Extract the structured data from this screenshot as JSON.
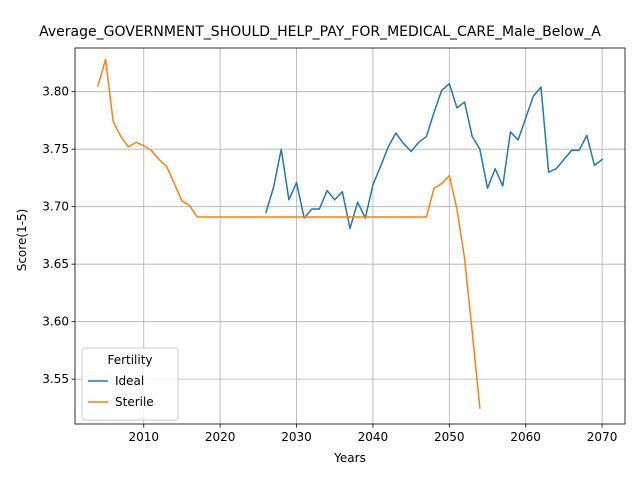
{
  "chart_data": {
    "type": "line",
    "title": "Average_GOVERNMENT_SHOULD_HELP_PAY_FOR_MEDICAL_CARE_Male_Below_A",
    "xlabel": "Years",
    "ylabel": "Score(1-5)",
    "xlim": [
      2001,
      2073
    ],
    "ylim": [
      3.511,
      3.838
    ],
    "xticks": [
      2010,
      2020,
      2030,
      2040,
      2050,
      2060,
      2070
    ],
    "yticks": [
      3.55,
      3.6,
      3.65,
      3.7,
      3.75,
      3.8
    ],
    "grid": true,
    "legend": {
      "title": "Fertility",
      "position": "lower-left"
    },
    "series": [
      {
        "name": "Ideal",
        "color": "#1f77b4",
        "x": [
          2026,
          2027,
          2028,
          2029,
          2030,
          2031,
          2032,
          2033,
          2034,
          2035,
          2036,
          2037,
          2038,
          2039,
          2040,
          2041,
          2042,
          2043,
          2044,
          2045,
          2046,
          2047,
          2048,
          2049,
          2050,
          2051,
          2052,
          2053,
          2054,
          2055,
          2056,
          2057,
          2058,
          2059,
          2060,
          2061,
          2062,
          2063,
          2064,
          2065,
          2066,
          2067,
          2068,
          2069,
          2070
        ],
        "y": [
          3.695,
          3.717,
          3.75,
          3.706,
          3.721,
          3.69,
          3.698,
          3.698,
          3.714,
          3.706,
          3.713,
          3.681,
          3.704,
          3.69,
          3.719,
          3.735,
          3.752,
          3.764,
          3.755,
          3.748,
          3.756,
          3.761,
          3.782,
          3.801,
          3.807,
          3.786,
          3.791,
          3.761,
          3.75,
          3.716,
          3.733,
          3.718,
          3.765,
          3.758,
          3.777,
          3.796,
          3.804,
          3.73,
          3.733,
          3.741,
          3.749,
          3.749,
          3.762,
          3.736,
          3.741
        ]
      },
      {
        "name": "Sterile",
        "color": "#ff7f0e",
        "x": [
          2004,
          2005,
          2006,
          2007,
          2008,
          2009,
          2010,
          2011,
          2012,
          2013,
          2014,
          2015,
          2016,
          2017,
          2018,
          2019,
          2020,
          2021,
          2022,
          2023,
          2024,
          2025,
          2026,
          2027,
          2028,
          2029,
          2030,
          2031,
          2032,
          2033,
          2034,
          2035,
          2036,
          2037,
          2038,
          2039,
          2040,
          2041,
          2042,
          2043,
          2044,
          2045,
          2046,
          2047,
          2048,
          2049,
          2050,
          2051,
          2052,
          2053,
          2054
        ],
        "y": [
          3.805,
          3.828,
          3.774,
          3.761,
          3.752,
          3.756,
          3.753,
          3.749,
          3.741,
          3.735,
          3.72,
          3.705,
          3.701,
          3.691,
          3.691,
          3.691,
          3.691,
          3.691,
          3.691,
          3.691,
          3.691,
          3.691,
          3.691,
          3.691,
          3.691,
          3.691,
          3.691,
          3.691,
          3.691,
          3.691,
          3.691,
          3.691,
          3.691,
          3.691,
          3.691,
          3.691,
          3.691,
          3.691,
          3.691,
          3.691,
          3.691,
          3.691,
          3.691,
          3.691,
          3.716,
          3.72,
          3.727,
          3.698,
          3.655,
          3.591,
          3.525
        ]
      }
    ]
  }
}
